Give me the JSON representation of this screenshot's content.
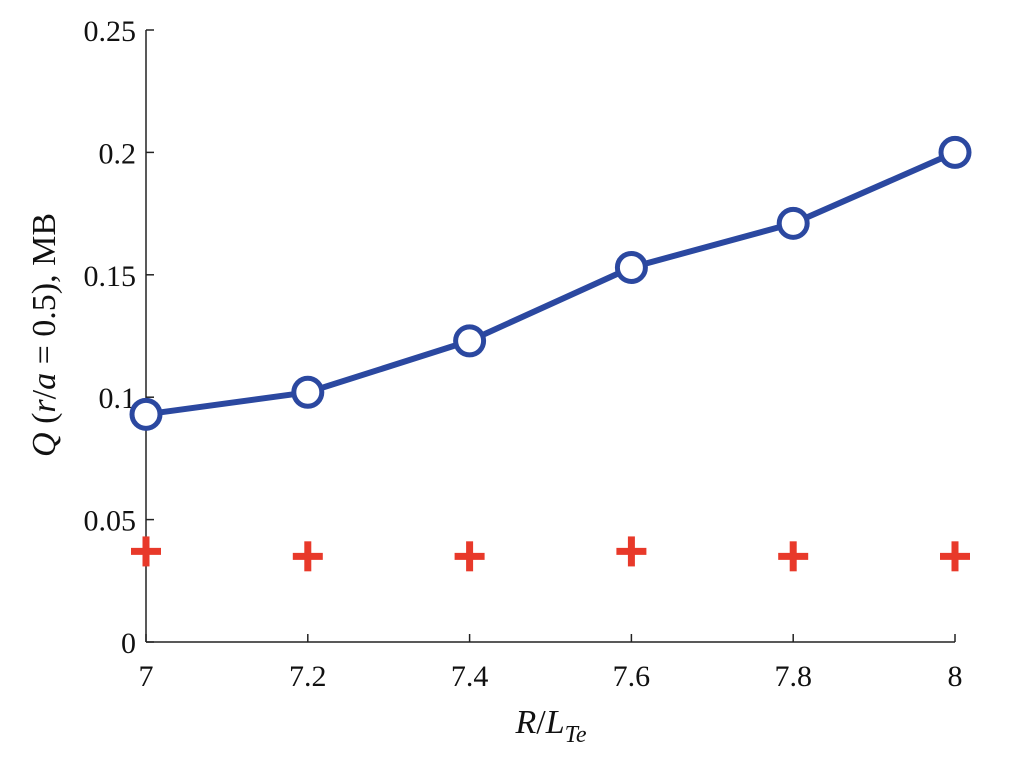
{
  "chart_data": {
    "type": "line",
    "xlabel_parts": [
      "R",
      "/",
      "L",
      "Te"
    ],
    "ylabel_parts": [
      "Q",
      " (",
      "r",
      "/",
      "a",
      " = 0.5), MB"
    ],
    "xlim": [
      7,
      8
    ],
    "ylim": [
      0,
      0.25
    ],
    "x_ticks": [
      "7",
      "7.2",
      "7.4",
      "7.6",
      "7.8",
      "8"
    ],
    "y_ticks": [
      "0",
      "0.05",
      "0.1",
      "0.15",
      "0.2",
      "0.25"
    ],
    "grid": false,
    "x": [
      7,
      7.2,
      7.4,
      7.6,
      7.8,
      8
    ],
    "series": [
      {
        "values": [
          0.093,
          0.102,
          0.123,
          0.153,
          0.171,
          0.2
        ],
        "color": "#2b48a0",
        "marker": "circle",
        "line": true
      },
      {
        "values": [
          0.037,
          0.035,
          0.035,
          0.037,
          0.035,
          0.035
        ],
        "color": "#e8392a",
        "marker": "plus",
        "line": false
      }
    ]
  }
}
